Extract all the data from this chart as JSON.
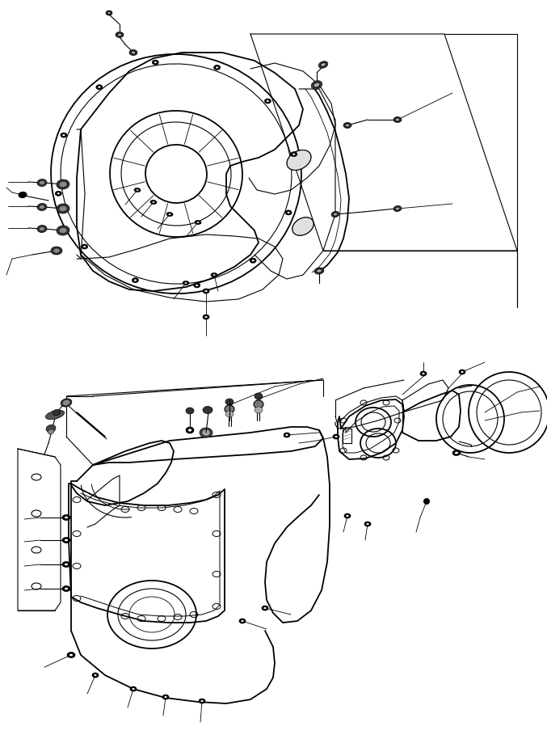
{
  "bg_color": "#ffffff",
  "lc": "#000000",
  "lw": 0.8,
  "tlw": 1.3,
  "fig_w": 6.77,
  "fig_h": 9.3,
  "dpi": 100
}
